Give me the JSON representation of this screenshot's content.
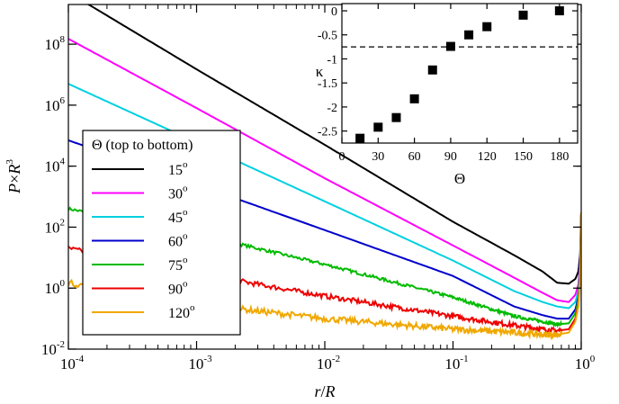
{
  "chart_data": [
    {
      "type": "line",
      "xlabel_parts": [
        "r",
        "/",
        "R"
      ],
      "ylabel_parts": [
        "P",
        "×",
        "R",
        "3"
      ],
      "x_scale": "log",
      "y_scale": "log",
      "xlim": [
        0.0001,
        1
      ],
      "ylim": [
        0.01,
        2000000000
      ],
      "x_ticks": [
        {
          "value": 0.0001,
          "base": "10",
          "exp": "-4"
        },
        {
          "value": 0.001,
          "base": "10",
          "exp": "-3"
        },
        {
          "value": 0.01,
          "base": "10",
          "exp": "-2"
        },
        {
          "value": 0.1,
          "base": "10",
          "exp": "-1"
        },
        {
          "value": 1,
          "base": "10",
          "exp": "0"
        }
      ],
      "y_ticks": [
        {
          "value": 0.01,
          "base": "10",
          "exp": "-2"
        },
        {
          "value": 1,
          "base": "10",
          "exp": "0"
        },
        {
          "value": 100,
          "base": "10",
          "exp": "2"
        },
        {
          "value": 10000,
          "base": "10",
          "exp": "4"
        },
        {
          "value": 1000000,
          "base": "10",
          "exp": "6"
        },
        {
          "value": 100000000,
          "base": "10",
          "exp": "8"
        }
      ],
      "legend": {
        "title": "Θ (top to bottom)",
        "placement": "left",
        "entries": [
          {
            "angle": "15",
            "sup": "o",
            "color": "#000000"
          },
          {
            "angle": "30",
            "sup": "o",
            "color": "#ff00ff"
          },
          {
            "angle": "45",
            "sup": "o",
            "color": "#00d0e0"
          },
          {
            "angle": "60",
            "sup": "o",
            "color": "#0000cc"
          },
          {
            "angle": "75",
            "sup": "o",
            "color": "#00bb00"
          },
          {
            "angle": "90",
            "sup": "o",
            "color": "#ee0000"
          },
          {
            "angle": "120",
            "sup": "o",
            "color": "#f0a800"
          }
        ]
      },
      "series": [
        {
          "color": "#000000",
          "noise": 0,
          "x": [
            0.0001,
            0.001,
            0.01,
            0.1,
            0.3,
            0.5,
            0.65,
            0.8,
            0.9,
            0.95,
            0.98,
            1.0
          ],
          "y": [
            5000000000.0,
            15000000.0,
            50000.0,
            150,
            12,
            3.5,
            1.5,
            1.4,
            2.0,
            3.5,
            12,
            300
          ]
        },
        {
          "color": "#ff00ff",
          "noise": 0,
          "x": [
            0.0001,
            0.001,
            0.01,
            0.1,
            0.3,
            0.5,
            0.65,
            0.8,
            0.9,
            0.95,
            0.98,
            1.0
          ],
          "y": [
            150000000.0,
            800000.0,
            4000,
            25,
            2.2,
            0.7,
            0.4,
            0.35,
            0.6,
            1.3,
            6,
            300
          ]
        },
        {
          "color": "#00d0e0",
          "noise": 0,
          "x": [
            0.0001,
            0.001,
            0.01,
            0.1,
            0.3,
            0.5,
            0.65,
            0.8,
            0.9,
            0.95,
            0.98,
            1.0
          ],
          "y": [
            5000000.0,
            60000.0,
            700,
            8,
            0.8,
            0.35,
            0.25,
            0.22,
            0.35,
            0.8,
            4,
            300
          ]
        },
        {
          "color": "#0000cc",
          "noise": 0,
          "x": [
            0.0001,
            0.001,
            0.01,
            0.1,
            0.3,
            0.5,
            0.65,
            0.8,
            0.9,
            0.95,
            0.98,
            1.0
          ],
          "y": [
            70000.0,
            2500,
            80,
            2.5,
            0.25,
            0.13,
            0.1,
            0.1,
            0.2,
            0.5,
            3,
            300
          ]
        },
        {
          "color": "#00bb00",
          "noise": 0.05,
          "x": [
            0.0001,
            0.001,
            0.01,
            0.1,
            0.3,
            0.5,
            0.65,
            0.8,
            0.9,
            0.95,
            0.98,
            1.0
          ],
          "y": [
            400,
            60,
            6,
            0.5,
            0.12,
            0.08,
            0.065,
            0.07,
            0.15,
            0.4,
            2.5,
            300
          ]
        },
        {
          "color": "#ee0000",
          "noise": 0.08,
          "x": [
            0.0001,
            0.001,
            0.01,
            0.1,
            0.3,
            0.5,
            0.65,
            0.8,
            0.9,
            0.95,
            0.98,
            1.0
          ],
          "y": [
            20,
            3,
            0.55,
            0.12,
            0.06,
            0.045,
            0.04,
            0.045,
            0.1,
            0.3,
            2,
            300
          ]
        },
        {
          "color": "#f0a800",
          "noise": 0.1,
          "x": [
            0.0001,
            0.001,
            0.01,
            0.1,
            0.3,
            0.5,
            0.65,
            0.8,
            0.9,
            0.95,
            0.98,
            1.0
          ],
          "y": [
            1.5,
            0.3,
            0.1,
            0.045,
            0.035,
            0.03,
            0.03,
            0.035,
            0.08,
            0.25,
            1.8,
            300
          ]
        }
      ]
    },
    {
      "type": "scatter",
      "xlabel": "Θ",
      "ylabel": "κ",
      "xlim": [
        0,
        195
      ],
      "ylim": [
        -2.75,
        0.15
      ],
      "x_ticks": [
        "0",
        "30",
        "60",
        "90",
        "120",
        "150",
        "180"
      ],
      "y_ticks": [
        "0",
        "-0.5",
        "-1",
        "-1.5",
        "-2",
        "-2.5"
      ],
      "reference_line": {
        "y": -0.75,
        "style": "dashed"
      },
      "x": [
        15,
        30,
        45,
        60,
        75,
        90,
        105,
        120,
        150,
        180
      ],
      "y": [
        -2.65,
        -2.42,
        -2.22,
        -1.83,
        -1.23,
        -0.74,
        -0.5,
        -0.33,
        -0.09,
        0.0
      ]
    }
  ]
}
